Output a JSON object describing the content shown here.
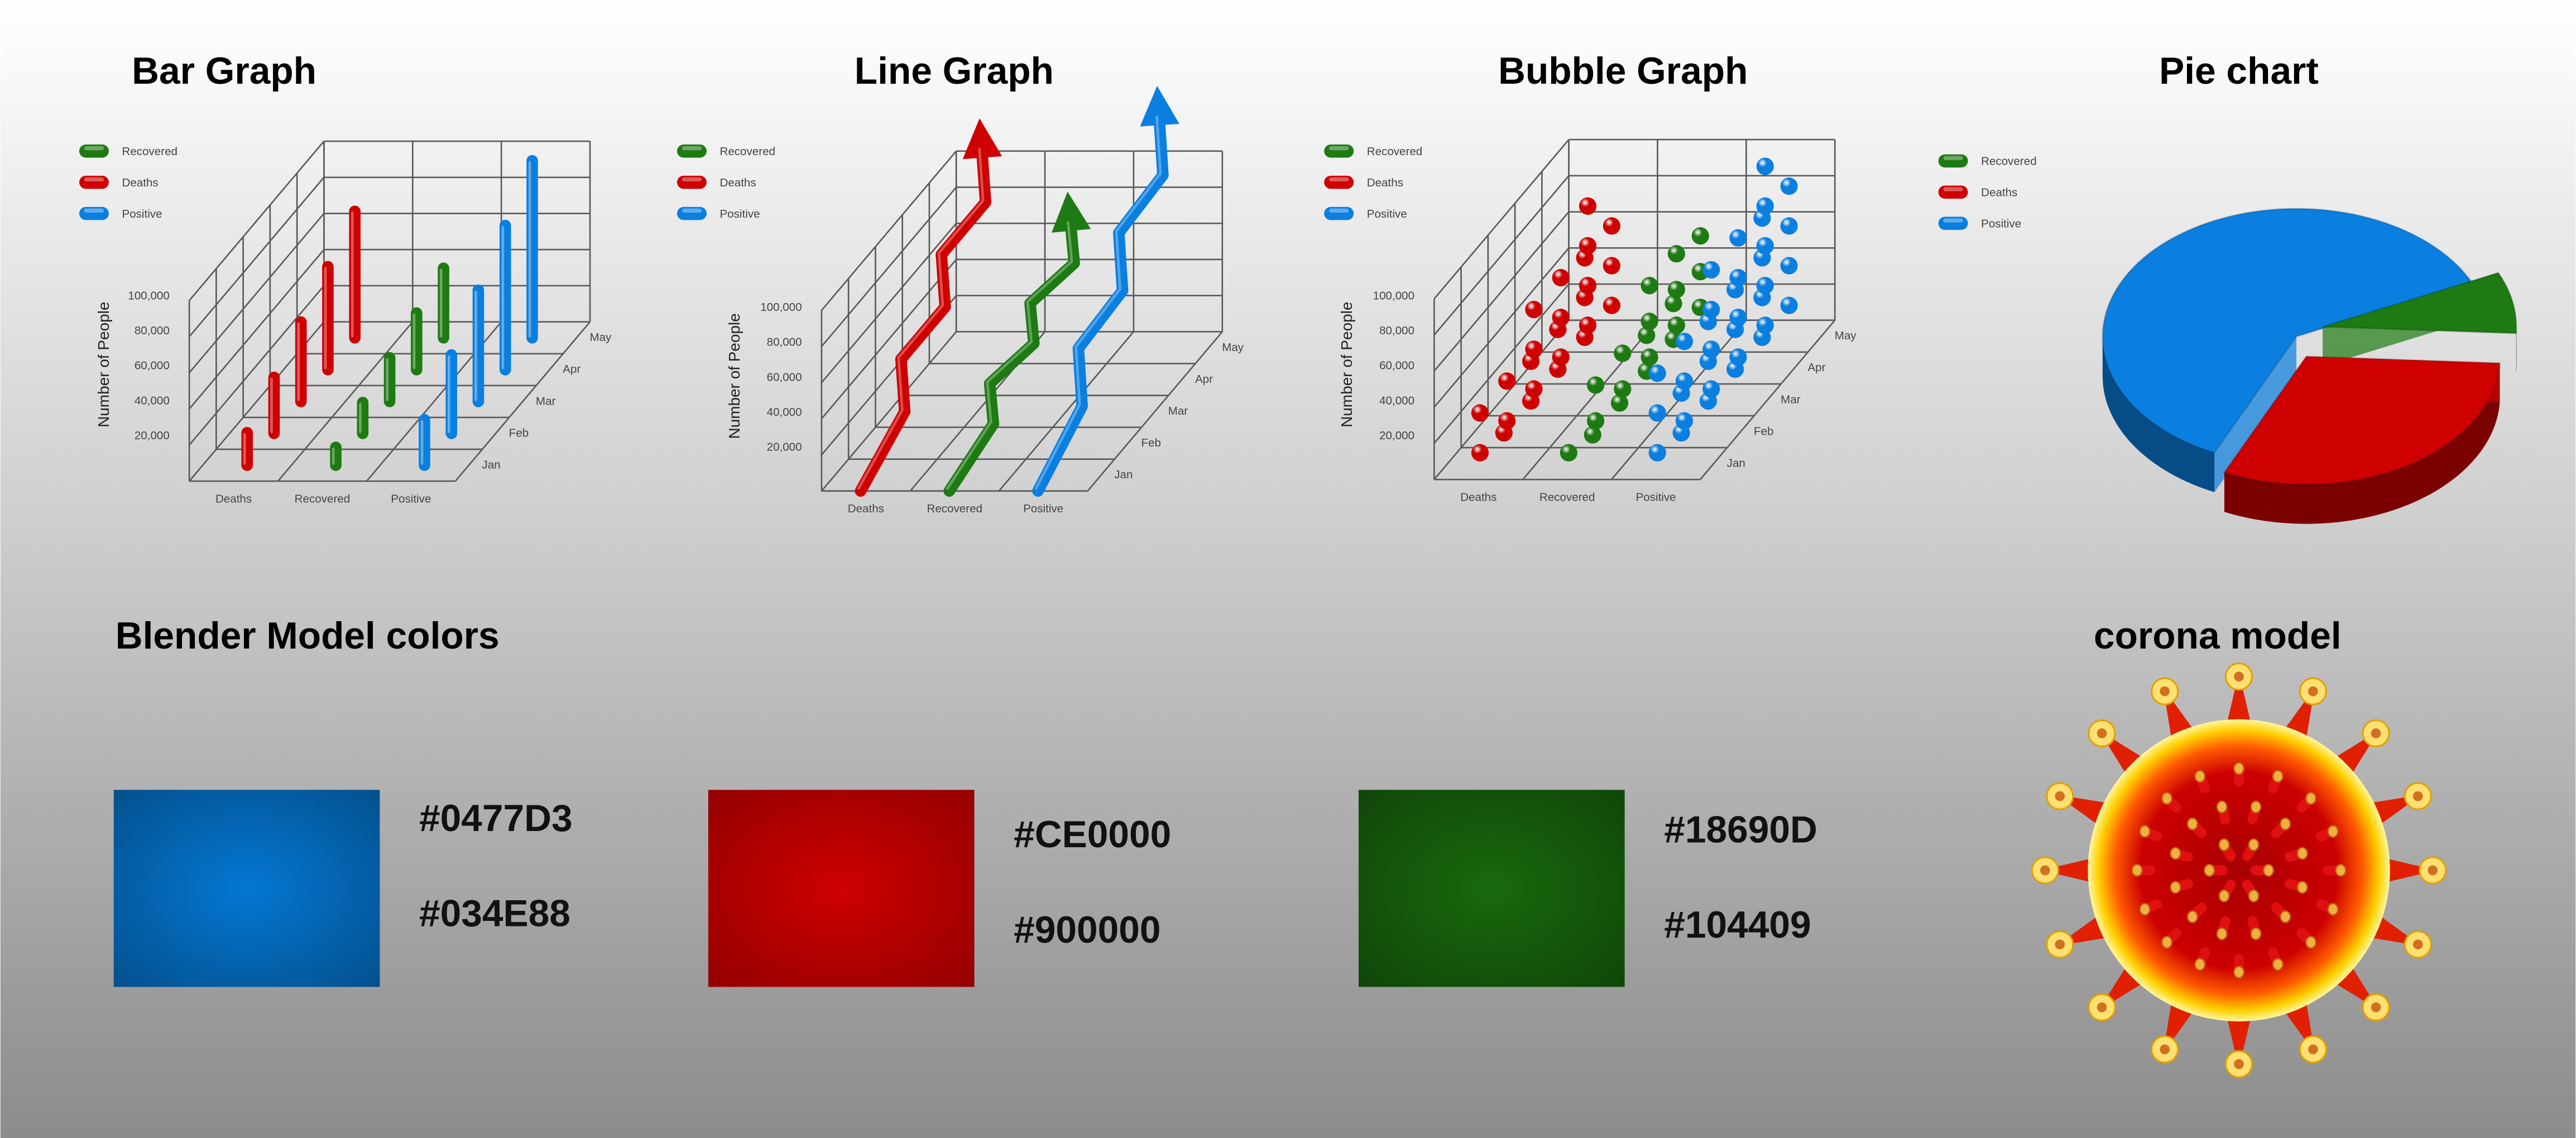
{
  "charts": [
    {
      "title": "Bar Graph",
      "legend": [
        {
          "name": "Recovered",
          "color": "#1e7a12"
        },
        {
          "name": "Deaths",
          "color": "#CE0000"
        },
        {
          "name": "Positive",
          "color": "#0a7fe0"
        }
      ],
      "y_label": "Number of People",
      "y_ticks": [
        "20,000",
        "40,000",
        "60,000",
        "80,000",
        "100,000"
      ],
      "x_labels": [
        "Deaths",
        "Recovered",
        "Positive"
      ],
      "depth_labels": [
        "Jan",
        "Feb",
        "Mar",
        "Apr",
        "May"
      ]
    },
    {
      "title": "Line Graph",
      "legend": [
        {
          "name": "Recovered",
          "color": "#1e7a12"
        },
        {
          "name": "Deaths",
          "color": "#CE0000"
        },
        {
          "name": "Positive",
          "color": "#0a7fe0"
        }
      ],
      "y_label": "Number of People",
      "y_ticks": [
        "20,000",
        "40,000",
        "60,000",
        "80,000",
        "100,000"
      ],
      "x_labels": [
        "Deaths",
        "Recovered",
        "Positive"
      ],
      "depth_labels": [
        "Jan",
        "Feb",
        "Mar",
        "Apr",
        "May"
      ]
    },
    {
      "title": "Bubble Graph",
      "legend": [
        {
          "name": "Recovered",
          "color": "#1e7a12"
        },
        {
          "name": "Deaths",
          "color": "#CE0000"
        },
        {
          "name": "Positive",
          "color": "#0a7fe0"
        }
      ],
      "y_label": "Number of People",
      "y_ticks": [
        "20,000",
        "40,000",
        "60,000",
        "80,000",
        "100,000"
      ],
      "x_labels": [
        "Deaths",
        "Recovered",
        "Positive"
      ],
      "depth_labels": [
        "Jan",
        "Feb",
        "Mar",
        "Apr",
        "May"
      ]
    }
  ],
  "pie": {
    "title": "Pie chart",
    "legend": [
      {
        "name": "Recovered",
        "color": "#1e7a12"
      },
      {
        "name": "Deaths",
        "color": "#CE0000"
      },
      {
        "name": "Positive",
        "color": "#0a7fe0"
      }
    ]
  },
  "colors": {
    "title": "Blender Model colors",
    "swatches": [
      {
        "codes": [
          "#0477D3",
          "#034E88"
        ]
      },
      {
        "codes": [
          "#CE0000",
          "#900000"
        ]
      },
      {
        "codes": [
          "#18690D",
          "#104409"
        ]
      }
    ]
  },
  "model": {
    "title": "corona model"
  }
}
